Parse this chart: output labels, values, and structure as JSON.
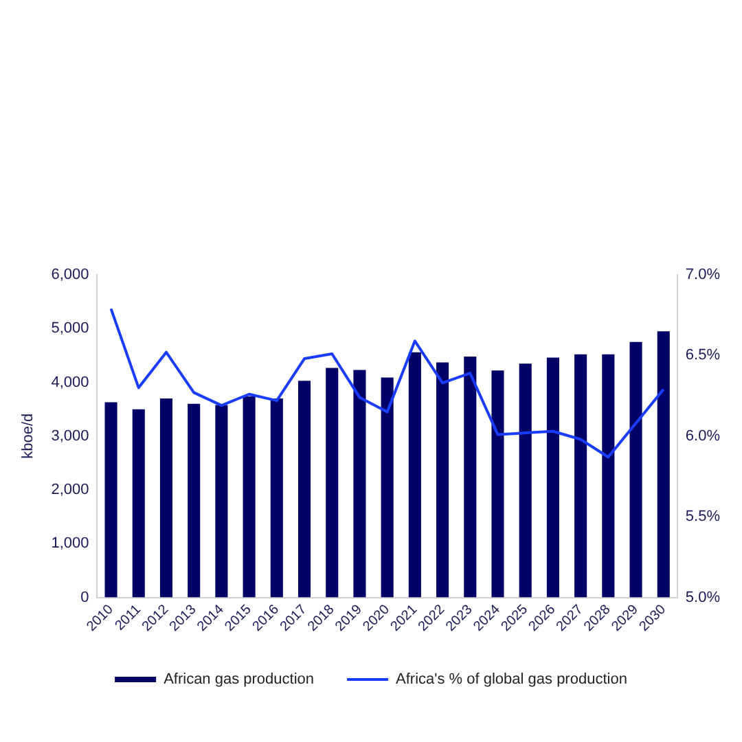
{
  "chart_data": {
    "type": "bar",
    "ylabel": "kboe/d",
    "categories": [
      "2010",
      "2011",
      "2012",
      "2013",
      "2014",
      "2015",
      "2016",
      "2017",
      "2018",
      "2019",
      "2020",
      "2021",
      "2022",
      "2023",
      "2024",
      "2025",
      "2026",
      "2027",
      "2028",
      "2029",
      "2030"
    ],
    "series": [
      {
        "name": "African gas production",
        "color": "#000066",
        "values": [
          3630,
          3500,
          3700,
          3600,
          3580,
          3740,
          3700,
          4030,
          4270,
          4230,
          4090,
          4560,
          4370,
          4480,
          4220,
          4350,
          4460,
          4520,
          4520,
          4750,
          4950
        ]
      },
      {
        "name": "Africa's % of global gas production",
        "type": "line",
        "axis": "y2",
        "color": "#1a3cff",
        "values": [
          6.79,
          6.3,
          6.52,
          6.27,
          6.19,
          6.26,
          6.22,
          6.48,
          6.51,
          6.24,
          6.15,
          6.59,
          6.33,
          6.39,
          6.01,
          6.02,
          6.03,
          5.98,
          5.87,
          6.08,
          6.29
        ]
      }
    ],
    "ylim": [
      0,
      6000
    ],
    "yticks": [
      0,
      {
        "value": 1000,
        "label": "1,000"
      },
      {
        "value": 2000,
        "label": "2,000"
      },
      {
        "value": 3000,
        "label": "3,000"
      },
      {
        "value": 4000,
        "label": "4,000"
      },
      {
        "value": 5000,
        "label": "5,000"
      },
      {
        "value": 6000,
        "label": "6,000"
      }
    ],
    "y2lim": [
      5,
      7
    ],
    "y2ticks": [
      {
        "value": 5,
        "label": "5.0%"
      },
      {
        "value": 5.5,
        "label": "5.5%"
      },
      {
        "value": 6,
        "label": "6.0%"
      },
      {
        "value": 6.5,
        "label": "6.5%"
      },
      {
        "value": 7,
        "label": "7.0%"
      }
    ],
    "grid": false,
    "legend": "bottom",
    "marker": "none",
    "line_style": "solid"
  }
}
